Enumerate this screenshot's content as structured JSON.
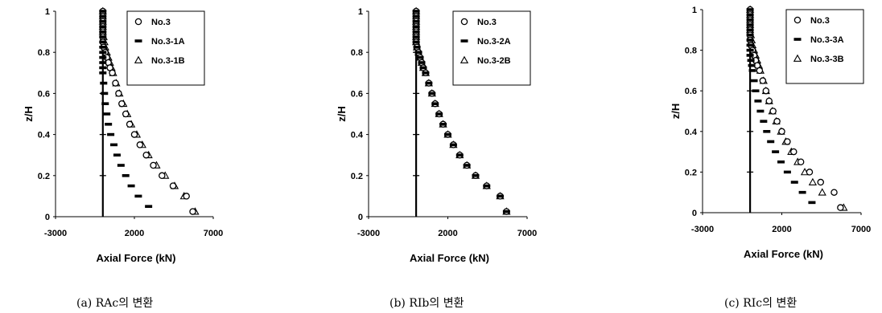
{
  "chart_data": [
    {
      "type": "scatter",
      "caption": "(a) RAc의 변환",
      "xlabel": "Axial Force (kN)",
      "ylabel": "z/H",
      "xlim": [
        -3000,
        7000
      ],
      "ylim": [
        0,
        1
      ],
      "xticks": [
        "-3000",
        "2000",
        "7000"
      ],
      "yticks": [
        "0",
        "0.2",
        "0.4",
        "0.6",
        "0.8",
        "1"
      ],
      "legend_position": "top-right",
      "series": [
        {
          "name": "No.3",
          "marker": "circle",
          "x": [
            0,
            0,
            0,
            0,
            0,
            0,
            0,
            50,
            150,
            250,
            350,
            450,
            600,
            800,
            1000,
            1200,
            1450,
            1700,
            2000,
            2350,
            2750,
            3200,
            3750,
            4450,
            5300,
            5700
          ],
          "y": [
            1,
            0.975,
            0.95,
            0.925,
            0.9,
            0.875,
            0.85,
            0.825,
            0.8,
            0.775,
            0.75,
            0.725,
            0.7,
            0.65,
            0.6,
            0.55,
            0.5,
            0.45,
            0.4,
            0.35,
            0.3,
            0.25,
            0.2,
            0.15,
            0.1,
            0.025
          ]
        },
        {
          "name": "No.3-1A",
          "marker": "dash",
          "x": [
            0,
            0,
            0,
            0,
            0,
            0,
            0,
            0,
            0,
            0,
            0,
            0,
            0,
            50,
            100,
            150,
            250,
            350,
            500,
            700,
            900,
            1150,
            1450,
            1800,
            2250,
            2900
          ],
          "y": [
            1,
            0.975,
            0.95,
            0.925,
            0.9,
            0.875,
            0.85,
            0.825,
            0.8,
            0.775,
            0.75,
            0.725,
            0.7,
            0.65,
            0.6,
            0.55,
            0.5,
            0.45,
            0.4,
            0.35,
            0.3,
            0.25,
            0.2,
            0.15,
            0.1,
            0.05
          ]
        },
        {
          "name": "No.3-1B",
          "marker": "triangle",
          "x": [
            0,
            0,
            0,
            0,
            0,
            50,
            100,
            150,
            250,
            350,
            450,
            550,
            650,
            850,
            1050,
            1300,
            1550,
            1800,
            2150,
            2500,
            2900,
            3400,
            3950,
            4550,
            5150,
            5850
          ],
          "y": [
            1,
            0.975,
            0.95,
            0.925,
            0.9,
            0.875,
            0.85,
            0.825,
            0.8,
            0.775,
            0.75,
            0.725,
            0.7,
            0.65,
            0.6,
            0.55,
            0.5,
            0.45,
            0.4,
            0.35,
            0.3,
            0.25,
            0.2,
            0.15,
            0.1,
            0.025
          ]
        }
      ]
    },
    {
      "type": "scatter",
      "caption": "(b) RIb의 변환",
      "xlabel": "Axial Force (kN)",
      "ylabel": "z/H",
      "xlim": [
        -3000,
        7000
      ],
      "ylim": [
        0,
        1
      ],
      "xticks": [
        "-3000",
        "2000",
        "7000"
      ],
      "yticks": [
        "0",
        "0.2",
        "0.4",
        "0.6",
        "0.8",
        "1"
      ],
      "legend_position": "top-right",
      "series": [
        {
          "name": "No.3",
          "marker": "circle",
          "x": [
            0,
            0,
            0,
            0,
            0,
            0,
            0,
            50,
            150,
            250,
            350,
            450,
            600,
            800,
            1000,
            1200,
            1450,
            1700,
            2000,
            2350,
            2750,
            3200,
            3750,
            4450,
            5300,
            5700
          ],
          "y": [
            1,
            0.975,
            0.95,
            0.925,
            0.9,
            0.875,
            0.85,
            0.825,
            0.8,
            0.775,
            0.75,
            0.725,
            0.7,
            0.65,
            0.6,
            0.55,
            0.5,
            0.45,
            0.4,
            0.35,
            0.3,
            0.25,
            0.2,
            0.15,
            0.1,
            0.025
          ]
        },
        {
          "name": "No.3-2A",
          "marker": "dash",
          "x": [
            0,
            0,
            0,
            0,
            0,
            0,
            0,
            50,
            150,
            250,
            350,
            450,
            600,
            800,
            1000,
            1200,
            1450,
            1700,
            2000,
            2350,
            2750,
            3200,
            3750,
            4450,
            5300,
            5700
          ],
          "y": [
            1,
            0.975,
            0.95,
            0.925,
            0.9,
            0.875,
            0.85,
            0.825,
            0.8,
            0.775,
            0.75,
            0.725,
            0.7,
            0.65,
            0.6,
            0.55,
            0.5,
            0.45,
            0.4,
            0.35,
            0.3,
            0.25,
            0.2,
            0.15,
            0.1,
            0.025
          ]
        },
        {
          "name": "No.3-2B",
          "marker": "triangle",
          "x": [
            0,
            0,
            0,
            0,
            0,
            0,
            0,
            50,
            150,
            250,
            350,
            450,
            600,
            800,
            1000,
            1200,
            1450,
            1700,
            2000,
            2350,
            2750,
            3200,
            3750,
            4450,
            5300,
            5700
          ],
          "y": [
            1,
            0.975,
            0.95,
            0.925,
            0.9,
            0.875,
            0.85,
            0.825,
            0.8,
            0.775,
            0.75,
            0.725,
            0.7,
            0.65,
            0.6,
            0.55,
            0.5,
            0.45,
            0.4,
            0.35,
            0.3,
            0.25,
            0.2,
            0.15,
            0.1,
            0.025
          ]
        }
      ]
    },
    {
      "type": "scatter",
      "caption": "(c) RIc의 변환",
      "xlabel": "Axial Force (kN)",
      "ylabel": "z/H",
      "xlim": [
        -3000,
        7000
      ],
      "ylim": [
        0,
        1
      ],
      "xticks": [
        "-3000",
        "2000",
        "7000"
      ],
      "yticks": [
        "0",
        "0.2",
        "0.4",
        "0.6",
        "0.8",
        "1"
      ],
      "legend_position": "top-right",
      "series": [
        {
          "name": "No.3",
          "marker": "circle",
          "x": [
            0,
            0,
            0,
            0,
            0,
            0,
            0,
            50,
            150,
            250,
            350,
            450,
            600,
            800,
            1000,
            1200,
            1450,
            1700,
            2000,
            2350,
            2750,
            3200,
            3750,
            4450,
            5300,
            5700
          ],
          "y": [
            1,
            0.975,
            0.95,
            0.925,
            0.9,
            0.875,
            0.85,
            0.825,
            0.8,
            0.775,
            0.75,
            0.725,
            0.7,
            0.65,
            0.6,
            0.55,
            0.5,
            0.45,
            0.4,
            0.35,
            0.3,
            0.25,
            0.2,
            0.15,
            0.1,
            0.025
          ]
        },
        {
          "name": "No.3-3A",
          "marker": "dash",
          "x": [
            0,
            0,
            0,
            0,
            0,
            0,
            0,
            0,
            0,
            0,
            50,
            100,
            150,
            250,
            350,
            500,
            650,
            850,
            1050,
            1300,
            1600,
            1950,
            2350,
            2800,
            3300,
            3900
          ],
          "y": [
            1,
            0.975,
            0.95,
            0.925,
            0.9,
            0.875,
            0.85,
            0.825,
            0.8,
            0.775,
            0.75,
            0.725,
            0.7,
            0.65,
            0.6,
            0.55,
            0.5,
            0.45,
            0.4,
            0.35,
            0.3,
            0.25,
            0.2,
            0.15,
            0.1,
            0.05
          ]
        },
        {
          "name": "No.3-3B",
          "marker": "triangle",
          "x": [
            0,
            0,
            0,
            0,
            0,
            50,
            100,
            150,
            250,
            350,
            450,
            550,
            650,
            850,
            1000,
            1200,
            1400,
            1650,
            1950,
            2250,
            2600,
            3000,
            3450,
            3950,
            4550,
            5900
          ],
          "y": [
            1,
            0.975,
            0.95,
            0.925,
            0.9,
            0.875,
            0.85,
            0.825,
            0.8,
            0.775,
            0.75,
            0.725,
            0.7,
            0.65,
            0.6,
            0.55,
            0.5,
            0.45,
            0.4,
            0.35,
            0.3,
            0.25,
            0.2,
            0.15,
            0.1,
            0.025
          ]
        }
      ]
    }
  ]
}
